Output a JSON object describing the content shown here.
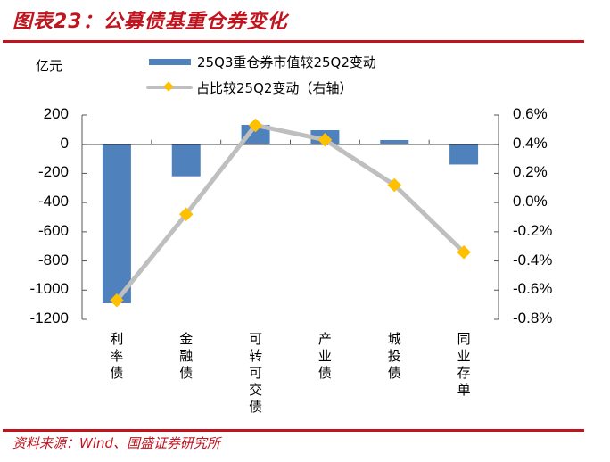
{
  "header": {
    "title": "图表23：公募债基重仓券变化"
  },
  "footer": {
    "source": "资料来源：Wind、国盛证券研究所"
  },
  "colors": {
    "brand_red": "#c0141e",
    "bar_blue": "#4f81bd",
    "line_gray": "#bfbfbf",
    "marker_yellow": "#ffc000"
  },
  "chart_data": {
    "type": "bar+line",
    "title": "公募债基重仓券变化",
    "categories": [
      "利率债",
      "金融债",
      "可转可交债",
      "产业债",
      "城投债",
      "同业存单"
    ],
    "series": [
      {
        "name": "25Q3重仓券市值较25Q2变动",
        "type": "bar",
        "axis": "left",
        "values": [
          -1090,
          -220,
          133,
          96,
          29,
          -139
        ]
      },
      {
        "name": "占比较25Q2变动（右轴）",
        "type": "line",
        "axis": "right",
        "values": [
          -0.67,
          -0.08,
          0.53,
          0.43,
          0.12,
          -0.34
        ]
      }
    ],
    "ylabel": "亿元",
    "ylim": [
      -1200,
      200
    ],
    "yticks": [
      "200",
      "0",
      "-200",
      "-400",
      "-600",
      "-800",
      "-1000",
      "-1200"
    ],
    "y2lim": [
      -0.8,
      0.6
    ],
    "y2ticks": [
      "0.6%",
      "0.4%",
      "0.2%",
      "0.0%",
      "-0.2%",
      "-0.4%",
      "-0.6%",
      "-0.8%"
    ],
    "legend_position": "top",
    "grid": false
  },
  "legend": {
    "unit": "亿元",
    "bar_label": "25Q3重仓券市值较25Q2变动",
    "line_label": "占比较25Q2变动（右轴）"
  }
}
